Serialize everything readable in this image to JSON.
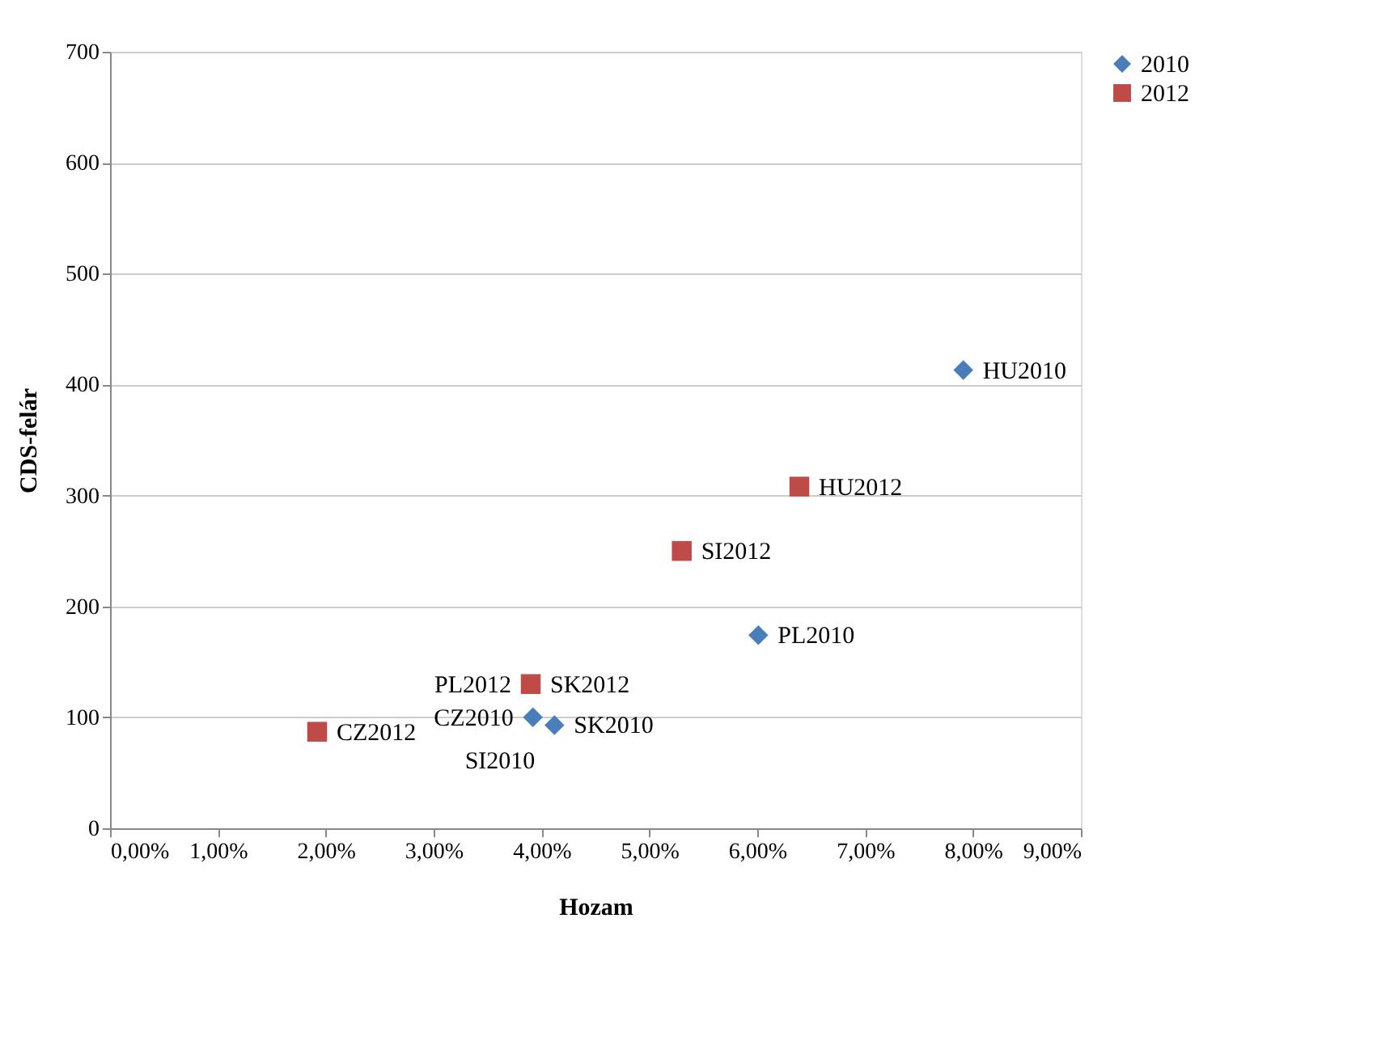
{
  "chart_data": {
    "type": "scatter",
    "xlabel": "Hozam",
    "ylabel": "CDS-felár",
    "xlim": [
      0,
      9
    ],
    "xticks": [
      {
        "value": 0,
        "label": "0,00%"
      },
      {
        "value": 1,
        "label": "1,00%"
      },
      {
        "value": 2,
        "label": "2,00%"
      },
      {
        "value": 3,
        "label": "3,00%"
      },
      {
        "value": 4,
        "label": "4,00%"
      },
      {
        "value": 5,
        "label": "5,00%"
      },
      {
        "value": 6,
        "label": "6,00%"
      },
      {
        "value": 7,
        "label": "7,00%"
      },
      {
        "value": 8,
        "label": "8,00%"
      },
      {
        "value": 9,
        "label": "9,00%"
      }
    ],
    "ylim": [
      0,
      700
    ],
    "yticks": [
      0,
      100,
      200,
      300,
      400,
      500,
      600,
      700
    ],
    "grid": "y",
    "legend": "right",
    "series": [
      {
        "name": "2010",
        "color": "#4a7ebb",
        "marker": "diamond",
        "x": [
          3.92,
          4.12,
          6.01,
          7.91
        ],
        "values": [
          100,
          93,
          174,
          413
        ]
      },
      {
        "name": "2012",
        "color": "#be4b48",
        "marker": "square",
        "x": [
          1.92,
          3.9,
          5.3,
          6.39
        ],
        "values": [
          87,
          130,
          250,
          308
        ]
      }
    ],
    "annotations": [
      {
        "text": "CZ2010",
        "x": 3.92,
        "y": 100
      },
      {
        "text": "SK2010",
        "x": 4.12,
        "y": 93
      },
      {
        "text": "SI2010",
        "x": 4.12,
        "y": 93
      },
      {
        "text": "PL2010",
        "x": 6.01,
        "y": 174
      },
      {
        "text": "HU2010",
        "x": 7.91,
        "y": 413
      },
      {
        "text": "CZ2012",
        "x": 1.92,
        "y": 87
      },
      {
        "text": "PL2012",
        "x": 3.9,
        "y": 130
      },
      {
        "text": "SK2012",
        "x": 3.9,
        "y": 130
      },
      {
        "text": "SI2012",
        "x": 5.3,
        "y": 250
      },
      {
        "text": "HU2012",
        "x": 6.39,
        "y": 308
      }
    ]
  }
}
